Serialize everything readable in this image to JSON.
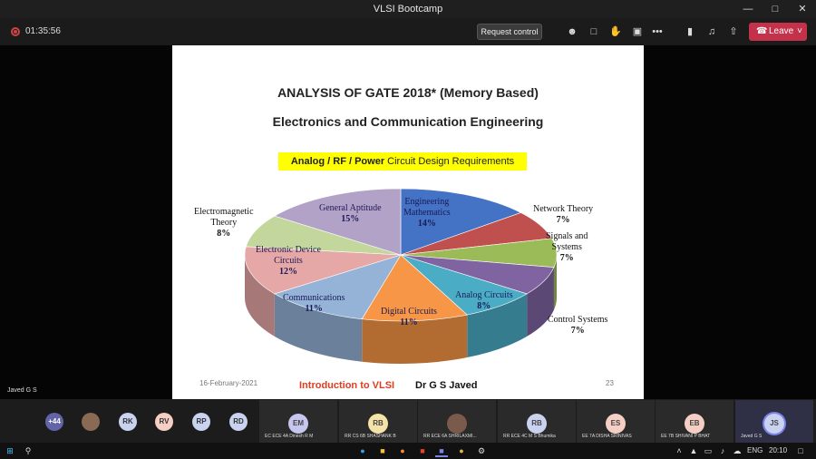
{
  "window": {
    "title": "VLSI Bootcamp"
  },
  "toolbar": {
    "timer": "01:35:56",
    "request_control_label": "Request control",
    "leave_label": "Leave"
  },
  "presenter": {
    "name": "Javed G S"
  },
  "slide": {
    "title": "ANALYSIS OF GATE 2018* (Memory Based)",
    "subtitle": "Electronics and Communication Engineering",
    "highlight_bold": "Analog / RF / Power",
    "highlight_rest": " Circuit Design Requirements",
    "footer_date": "16-February-2021",
    "footer_intro": "Introduction to VLSI",
    "footer_author": "Dr G S Javed",
    "page_number": "23"
  },
  "chart_data": {
    "type": "pie",
    "categories": [
      "Engineering Mathematics",
      "Network Theory",
      "Signals and Systems",
      "Control Systems",
      "Analog Circuits",
      "Digital Circuits",
      "Communications",
      "Electronic Device Circuits",
      "Electromagnetic Theory",
      "General Aptitude"
    ],
    "values": [
      14,
      7,
      7,
      7,
      8,
      11,
      11,
      12,
      8,
      15
    ],
    "labels": [
      [
        "Engineering",
        "Mathematics",
        "14%"
      ],
      [
        "Network Theory",
        "7%"
      ],
      [
        "Signals and",
        "Systems",
        "7%"
      ],
      [
        "Control Systems",
        "7%"
      ],
      [
        "Analog Circuits",
        "8%"
      ],
      [
        "Digital Circuits",
        "11%"
      ],
      [
        "Communications",
        "11%"
      ],
      [
        "Electronic Device",
        "Circuits",
        "12%"
      ],
      [
        "Electromagnetic",
        "Theory",
        "8%"
      ],
      [
        "General Aptitude",
        "15%"
      ]
    ],
    "colors": [
      "#4472c4",
      "#c0504d",
      "#9bbb59",
      "#8064a2",
      "#4bacc6",
      "#f79646",
      "#95b3d7",
      "#e6a8a6",
      "#c3d69b",
      "#b3a2c7"
    ]
  },
  "participants": {
    "overflow": "+44",
    "small": [
      {
        "initials": "",
        "photo": true
      },
      {
        "initials": "RK"
      },
      {
        "initials": "RV"
      },
      {
        "initials": "RP"
      },
      {
        "initials": "RD"
      }
    ],
    "tiles": [
      {
        "initials": "EM",
        "name": "EC ECE 4A Dinesh R M",
        "color": "#c6c6ee"
      },
      {
        "initials": "RB",
        "name": "RR CS 6B SHASHANK B",
        "color": "#f5e3a8"
      },
      {
        "initials": "",
        "name": "RR ECE 6A SHRILAXMI...",
        "color": "#7a5a4a",
        "photo": true
      },
      {
        "initials": "RB",
        "name": "RR ECE 4C M S Bhumika",
        "color": "#c9d3f0"
      },
      {
        "initials": "ES",
        "name": "EE 7A DISHA SRINIVAS",
        "color": "#f6cfc4"
      },
      {
        "initials": "EB",
        "name": "EE 7B SHIVANI P BHAT",
        "color": "#f6cfc4"
      },
      {
        "initials": "JS",
        "name": "Javed G S",
        "color": "#c9d3f0"
      }
    ]
  },
  "taskbar": {
    "language": "ENG",
    "time": "20:10"
  },
  "icons": [
    "windows-start-icon",
    "search-icon",
    "edge-icon",
    "file-explorer-icon",
    "firefox-icon",
    "office-icon",
    "teams-icon",
    "chrome-icon",
    "settings-icon"
  ]
}
